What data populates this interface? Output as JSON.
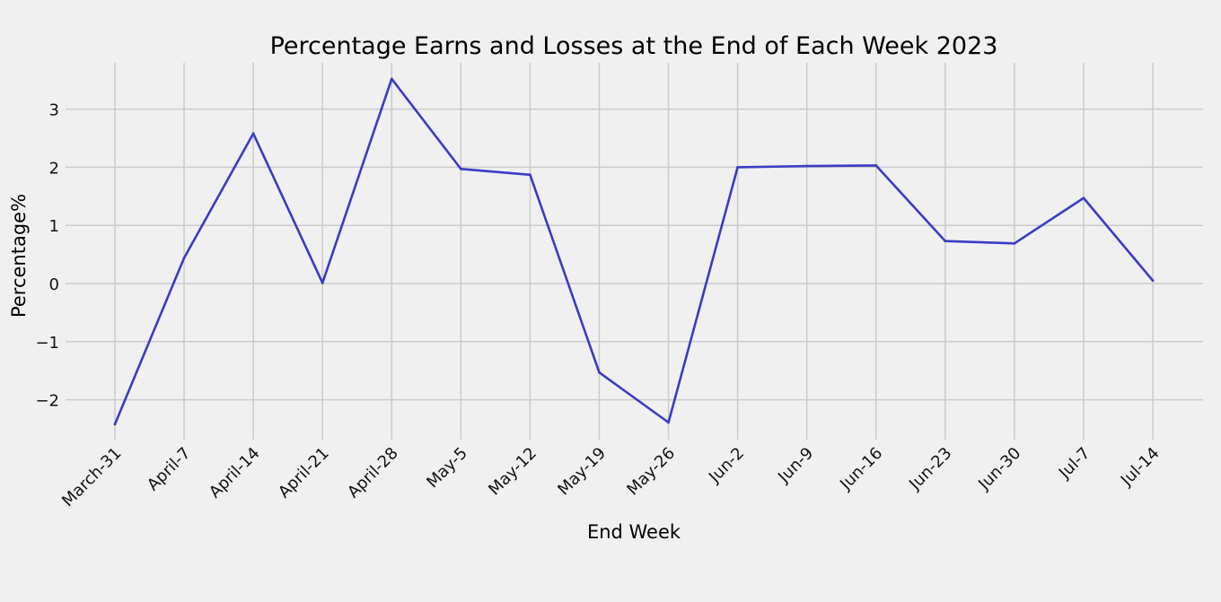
{
  "chart_data": {
    "type": "line",
    "title": "Percentage Earns and Losses at the End of Each Week 2023",
    "xlabel": "End Week",
    "ylabel": "Percentage%",
    "categories": [
      "March-31",
      "April-7",
      "April-14",
      "April-21",
      "April-28",
      "May-5",
      "May-12",
      "May-19",
      "May-26",
      "Jun-2",
      "Jun-9",
      "Jun-16",
      "Jun-23",
      "Jun-30",
      "Jul-7",
      "Jul-14"
    ],
    "series": [
      {
        "values": [
          -2.42,
          0.44,
          2.58,
          0.01,
          3.52,
          1.97,
          1.87,
          -1.53,
          -2.39,
          2.0,
          2.02,
          2.03,
          0.73,
          0.69,
          1.47,
          0.05
        ],
        "color": "#3b3bc4"
      }
    ],
    "yticks": [
      -2,
      -1,
      0,
      1,
      2,
      3
    ],
    "ytick_labels": [
      "−2",
      "−1",
      "0",
      "1",
      "2",
      "3"
    ],
    "ylim": [
      -2.7,
      3.8
    ],
    "grid": true,
    "background": "#f0f0f0",
    "grid_color": "#cbcbcb"
  }
}
